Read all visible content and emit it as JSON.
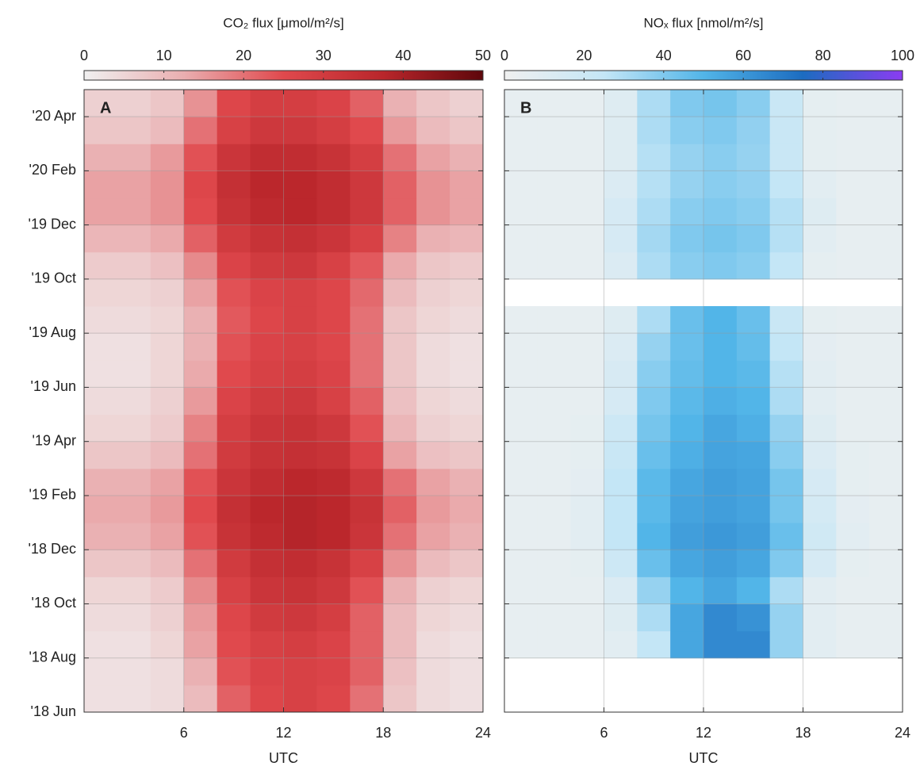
{
  "chart_data": [
    {
      "type": "heatmap",
      "title": "CO₂ flux [μmol/m²/s]",
      "panel_label": "A",
      "xlabel": "UTC",
      "xlim": [
        0,
        24
      ],
      "xticks": [
        6,
        12,
        18,
        24
      ],
      "x_bins": [
        0,
        2,
        4,
        6,
        8,
        10,
        12,
        14,
        16,
        18,
        20,
        22,
        24
      ],
      "ylim": [
        "2018-06",
        "2020-05"
      ],
      "yticks": [
        {
          "value": "2018-06",
          "label": "'18 Jun"
        },
        {
          "value": "2018-08",
          "label": "'18 Aug"
        },
        {
          "value": "2018-10",
          "label": "'18 Oct"
        },
        {
          "value": "2018-12",
          "label": "'18 Dec"
        },
        {
          "value": "2019-02",
          "label": "'19 Feb"
        },
        {
          "value": "2019-04",
          "label": "'19 Apr"
        },
        {
          "value": "2019-06",
          "label": "'19 Jun"
        },
        {
          "value": "2019-08",
          "label": "'19 Aug"
        },
        {
          "value": "2019-10",
          "label": "'19 Oct"
        },
        {
          "value": "2019-12",
          "label": "'19 Dec"
        },
        {
          "value": "2020-02",
          "label": "'20 Feb"
        },
        {
          "value": "2020-04",
          "label": "'20 Apr"
        }
      ],
      "y": [
        "2018-06",
        "2018-07",
        "2018-08",
        "2018-09",
        "2018-10",
        "2018-11",
        "2018-12",
        "2019-01",
        "2019-02",
        "2019-03",
        "2019-04",
        "2019-05",
        "2019-06",
        "2019-07",
        "2019-08",
        "2019-09",
        "2019-10",
        "2019-11",
        "2019-12",
        "2020-01",
        "2020-02",
        "2020-03",
        "2020-04"
      ],
      "values": [
        [
          3,
          3,
          4,
          10,
          22,
          26,
          28,
          26,
          20,
          8,
          4,
          3
        ],
        [
          3,
          3,
          4,
          12,
          24,
          27,
          28,
          27,
          22,
          9,
          4,
          3
        ],
        [
          3,
          3,
          5,
          14,
          25,
          28,
          29,
          27,
          22,
          10,
          4,
          3
        ],
        [
          4,
          4,
          6,
          15,
          26,
          30,
          31,
          29,
          22,
          10,
          5,
          4
        ],
        [
          5,
          5,
          7,
          17,
          28,
          32,
          33,
          31,
          24,
          12,
          6,
          5
        ],
        [
          8,
          8,
          10,
          20,
          30,
          34,
          35,
          33,
          28,
          16,
          10,
          8
        ],
        [
          12,
          12,
          14,
          24,
          33,
          36,
          38,
          37,
          32,
          20,
          14,
          12
        ],
        [
          13,
          13,
          15,
          25,
          34,
          37,
          38,
          37,
          33,
          22,
          15,
          13
        ],
        [
          12,
          12,
          14,
          24,
          32,
          35,
          37,
          36,
          31,
          20,
          14,
          12
        ],
        [
          8,
          8,
          10,
          20,
          30,
          33,
          34,
          33,
          27,
          14,
          9,
          8
        ],
        [
          5,
          5,
          7,
          18,
          29,
          32,
          33,
          31,
          24,
          11,
          6,
          5
        ],
        [
          4,
          4,
          6,
          15,
          27,
          30,
          31,
          28,
          22,
          9,
          5,
          4
        ],
        [
          3,
          3,
          5,
          13,
          25,
          28,
          29,
          27,
          20,
          8,
          4,
          3
        ],
        [
          3,
          3,
          5,
          12,
          24,
          27,
          28,
          26,
          20,
          8,
          4,
          3
        ],
        [
          4,
          4,
          5,
          12,
          23,
          26,
          28,
          26,
          20,
          8,
          5,
          4
        ],
        [
          5,
          5,
          6,
          14,
          24,
          27,
          28,
          26,
          21,
          10,
          6,
          5
        ],
        [
          7,
          7,
          9,
          17,
          27,
          30,
          31,
          28,
          23,
          13,
          8,
          7
        ],
        [
          11,
          11,
          13,
          22,
          30,
          33,
          34,
          32,
          28,
          18,
          12,
          11
        ],
        [
          14,
          14,
          16,
          25,
          33,
          36,
          37,
          35,
          31,
          22,
          16,
          14
        ],
        [
          14,
          14,
          16,
          26,
          34,
          37,
          37,
          35,
          31,
          22,
          16,
          14
        ],
        [
          12,
          12,
          15,
          24,
          32,
          35,
          35,
          33,
          29,
          20,
          14,
          12
        ],
        [
          8,
          8,
          10,
          20,
          28,
          31,
          31,
          29,
          25,
          15,
          10,
          8
        ],
        [
          6,
          6,
          8,
          16,
          26,
          29,
          29,
          27,
          22,
          12,
          8,
          6
        ]
      ],
      "clim": [
        0,
        50
      ],
      "cticks": [
        0,
        10,
        20,
        30,
        40,
        50
      ],
      "colorscale": [
        "#f0f0f0",
        "#eaaeb0",
        "#e0494d",
        "#b9262b",
        "#5e070b"
      ],
      "grid": true
    },
    {
      "type": "heatmap",
      "title": "NOₓ flux [nmol/m²/s]",
      "panel_label": "B",
      "xlabel": "UTC",
      "xlim": [
        0,
        24
      ],
      "xticks": [
        6,
        12,
        18,
        24
      ],
      "x_bins": [
        0,
        2,
        4,
        6,
        8,
        10,
        12,
        14,
        16,
        18,
        20,
        22,
        24
      ],
      "ylim": [
        "2018-06",
        "2020-05"
      ],
      "yticks": [
        "2018-06",
        "2018-08",
        "2018-10",
        "2018-12",
        "2019-02",
        "2019-04",
        "2019-06",
        "2019-08",
        "2019-10",
        "2019-12",
        "2020-02",
        "2020-04"
      ],
      "y": [
        "2018-06",
        "2018-07",
        "2018-08",
        "2018-09",
        "2018-10",
        "2018-11",
        "2018-12",
        "2019-01",
        "2019-02",
        "2019-03",
        "2019-04",
        "2019-05",
        "2019-06",
        "2019-07",
        "2019-08",
        "2019-09",
        "2019-10",
        "2019-11",
        "2019-12",
        "2020-01",
        "2020-02",
        "2020-03",
        "2020-04"
      ],
      "values": [
        [
          null,
          null,
          null,
          null,
          null,
          null,
          null,
          null,
          null,
          null,
          null,
          null
        ],
        [
          null,
          null,
          null,
          null,
          null,
          null,
          null,
          null,
          null,
          null,
          null,
          null
        ],
        [
          5,
          5,
          5,
          8,
          25,
          55,
          65,
          65,
          35,
          8,
          5,
          5
        ],
        [
          5,
          5,
          5,
          10,
          30,
          55,
          65,
          62,
          35,
          8,
          5,
          5
        ],
        [
          5,
          5,
          5,
          12,
          35,
          50,
          55,
          50,
          30,
          8,
          5,
          5
        ],
        [
          5,
          5,
          6,
          20,
          45,
          55,
          58,
          55,
          40,
          15,
          6,
          5
        ],
        [
          5,
          5,
          8,
          25,
          50,
          58,
          60,
          58,
          45,
          18,
          8,
          5
        ],
        [
          5,
          5,
          8,
          25,
          48,
          56,
          58,
          56,
          42,
          16,
          7,
          5
        ],
        [
          5,
          5,
          7,
          25,
          48,
          55,
          58,
          56,
          42,
          15,
          6,
          5
        ],
        [
          5,
          5,
          6,
          22,
          45,
          52,
          56,
          55,
          38,
          12,
          6,
          5
        ],
        [
          5,
          5,
          6,
          20,
          42,
          50,
          55,
          52,
          35,
          10,
          5,
          5
        ],
        [
          5,
          5,
          5,
          15,
          40,
          48,
          52,
          50,
          30,
          8,
          5,
          5
        ],
        [
          5,
          5,
          5,
          14,
          38,
          46,
          50,
          48,
          28,
          8,
          5,
          5
        ],
        [
          5,
          5,
          5,
          12,
          35,
          45,
          50,
          46,
          25,
          7,
          5,
          5
        ],
        [
          5,
          5,
          5,
          10,
          30,
          45,
          50,
          45,
          22,
          6,
          5,
          5
        ],
        [
          null,
          null,
          null,
          null,
          null,
          null,
          null,
          null,
          null,
          null,
          null,
          null
        ],
        [
          5,
          5,
          5,
          12,
          30,
          38,
          40,
          38,
          25,
          6,
          5,
          5
        ],
        [
          5,
          5,
          5,
          15,
          32,
          40,
          42,
          40,
          28,
          8,
          5,
          5
        ],
        [
          5,
          5,
          5,
          15,
          30,
          38,
          40,
          38,
          28,
          10,
          5,
          5
        ],
        [
          5,
          5,
          5,
          12,
          28,
          35,
          38,
          36,
          25,
          8,
          5,
          5
        ],
        [
          5,
          5,
          5,
          10,
          28,
          35,
          38,
          35,
          22,
          6,
          5,
          5
        ],
        [
          5,
          5,
          5,
          10,
          30,
          38,
          40,
          36,
          22,
          6,
          5,
          5
        ],
        [
          5,
          5,
          5,
          10,
          30,
          40,
          42,
          38,
          22,
          6,
          5,
          5
        ]
      ],
      "clim": [
        0,
        100
      ],
      "cticks": [
        0,
        20,
        40,
        60,
        80,
        100
      ],
      "colorscale": [
        "#f0f0f0",
        "#c4e6f6",
        "#52b5e8",
        "#1c6cc0",
        "#8b3cf2"
      ],
      "grid": true
    }
  ]
}
